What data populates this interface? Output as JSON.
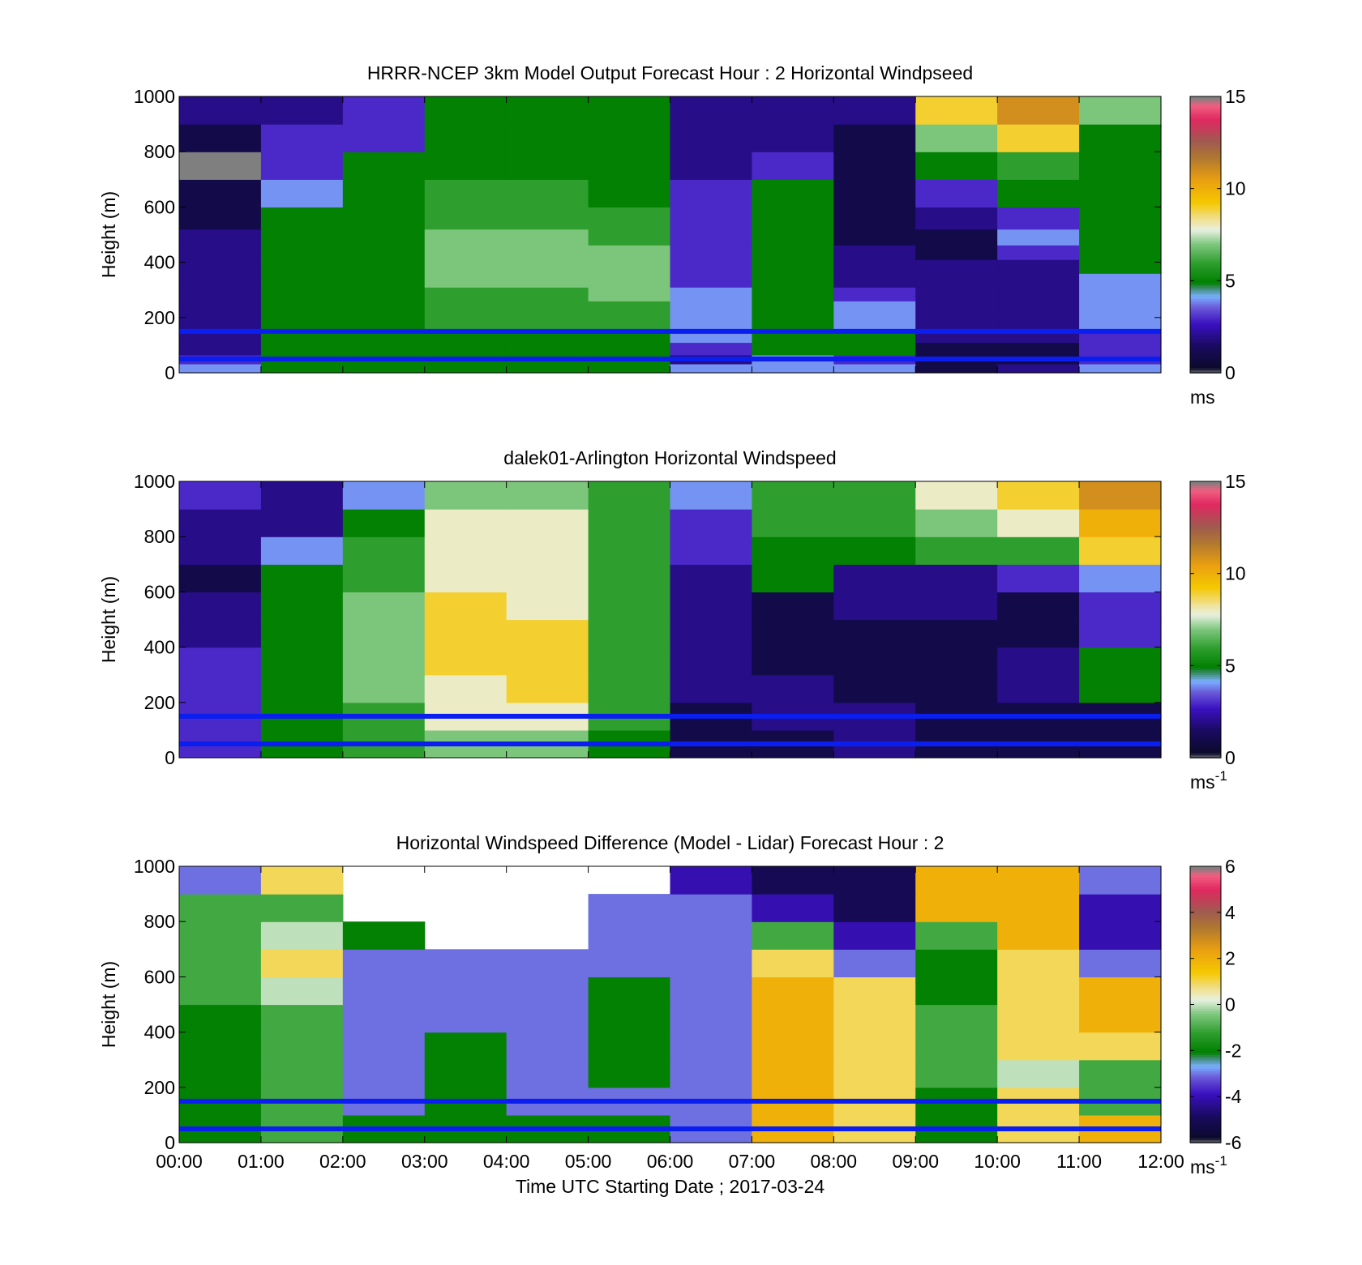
{
  "figure": {
    "xlabel": "Time UTC  Starting Date ; 2017-03-24",
    "x_tick_labels": [
      "00:00",
      "01:00",
      "02:00",
      "03:00",
      "04:00",
      "05:00",
      "06:00",
      "07:00",
      "08:00",
      "09:00",
      "10:00",
      "11:00",
      "12:00"
    ]
  },
  "chart_data": [
    {
      "type": "heatmap",
      "title": "HRRR-NCEP 3km Model Output   Forecast Hour : 2 Horizontal Windpseed",
      "ylabel": "Height (m)",
      "xlim": [
        0,
        12
      ],
      "ylim": [
        0,
        1000
      ],
      "y_ticks": [
        0,
        200,
        400,
        600,
        800,
        1000
      ],
      "colorbar": {
        "range": [
          0,
          15
        ],
        "ticks": [
          0,
          5,
          10,
          15
        ],
        "unit": "ms",
        "unit_sup": ""
      },
      "reference_lines_m": [
        50,
        150
      ],
      "x_hours": [
        0.5,
        1.5,
        2.5,
        3.5,
        4.5,
        5.5,
        6.5,
        7.5,
        8.5,
        9.5,
        10.5,
        11.5
      ],
      "y_levels_m": [
        20,
        45,
        85,
        135,
        185,
        235,
        285,
        335,
        385,
        435,
        490,
        550,
        650,
        750,
        850,
        950
      ],
      "values": [
        [
          4,
          5,
          5,
          5,
          5,
          5,
          4,
          4,
          4,
          1,
          2,
          4
        ],
        [
          3,
          5,
          5,
          5,
          5,
          5,
          2,
          4,
          3,
          1,
          1,
          3
        ],
        [
          2,
          5,
          5,
          5,
          5,
          5,
          3,
          5,
          5,
          1,
          1,
          3
        ],
        [
          2,
          5,
          5,
          5,
          5,
          5,
          4,
          5,
          5,
          2,
          2,
          3
        ],
        [
          2,
          5,
          5,
          6,
          6,
          6,
          4,
          5,
          4,
          2,
          2,
          4
        ],
        [
          2,
          5,
          5,
          6,
          6,
          6,
          4,
          5,
          4,
          2,
          2,
          4
        ],
        [
          2,
          5,
          5,
          6,
          6,
          7,
          4,
          5,
          3,
          2,
          2,
          4
        ],
        [
          2,
          5,
          5,
          7,
          7,
          7,
          3,
          5,
          2,
          2,
          2,
          4
        ],
        [
          2,
          5,
          5,
          7,
          7,
          7,
          3,
          5,
          2,
          2,
          2,
          5
        ],
        [
          2,
          5,
          5,
          7,
          7,
          7,
          3,
          5,
          2,
          1,
          3,
          5
        ],
        [
          2,
          5,
          5,
          7,
          7,
          6,
          3,
          5,
          1,
          1,
          4,
          5
        ],
        [
          1,
          5,
          5,
          6,
          6,
          6,
          3,
          5,
          1,
          2,
          3,
          5
        ],
        [
          1,
          4,
          5,
          6,
          6,
          5,
          3,
          5,
          1,
          3,
          5,
          5
        ],
        [
          0,
          3,
          5,
          5,
          5,
          5,
          2,
          3,
          1,
          5,
          6,
          5
        ],
        [
          1,
          3,
          3,
          5,
          5,
          5,
          2,
          2,
          1,
          7,
          9,
          5
        ],
        [
          2,
          2,
          3,
          5,
          5,
          5,
          2,
          2,
          2,
          9,
          11,
          7
        ]
      ]
    },
    {
      "type": "heatmap",
      "title": "dalek01-Arlington  Horizontal Windspeed",
      "ylabel": "Height (m)",
      "xlim": [
        0,
        12
      ],
      "ylim": [
        0,
        1000
      ],
      "y_ticks": [
        0,
        200,
        400,
        600,
        800,
        1000
      ],
      "colorbar": {
        "range": [
          0,
          15
        ],
        "ticks": [
          0,
          5,
          10,
          15
        ],
        "unit": "ms",
        "unit_sup": "-1"
      },
      "reference_lines_m": [
        50,
        150
      ],
      "x_hours": [
        0.5,
        1.5,
        2.5,
        3.5,
        4.5,
        5.5,
        6.5,
        7.5,
        8.5,
        9.5,
        10.5,
        11.5
      ],
      "y_levels_m": [
        50,
        150,
        250,
        350,
        450,
        550,
        650,
        750,
        850,
        950
      ],
      "values": [
        [
          3,
          5,
          6,
          7,
          7,
          5,
          1,
          1,
          2,
          1,
          1,
          1
        ],
        [
          3,
          5,
          6,
          8,
          8,
          6,
          1,
          2,
          2,
          1,
          1,
          1
        ],
        [
          3,
          5,
          7,
          8,
          9,
          6,
          2,
          2,
          1,
          1,
          2,
          5
        ],
        [
          3,
          5,
          7,
          9,
          9,
          6,
          2,
          1,
          1,
          1,
          2,
          5
        ],
        [
          2,
          5,
          7,
          9,
          9,
          6,
          2,
          1,
          1,
          1,
          1,
          3
        ],
        [
          2,
          5,
          7,
          9,
          8,
          6,
          2,
          1,
          2,
          2,
          1,
          3
        ],
        [
          1,
          5,
          6,
          8,
          8,
          6,
          2,
          5,
          2,
          2,
          3,
          4
        ],
        [
          2,
          4,
          6,
          8,
          8,
          6,
          3,
          5,
          5,
          6,
          6,
          9
        ],
        [
          2,
          2,
          5,
          8,
          8,
          6,
          3,
          6,
          6,
          7,
          8,
          10
        ],
        [
          3,
          2,
          4,
          7,
          7,
          6,
          4,
          6,
          6,
          8,
          9,
          11
        ]
      ]
    },
    {
      "type": "heatmap",
      "title": "Horizontal Windspeed Difference (Model - Lidar) Forecast Hour : 2",
      "ylabel": "Height (m)",
      "xlim": [
        0,
        12
      ],
      "ylim": [
        0,
        1000
      ],
      "y_ticks": [
        0,
        200,
        400,
        600,
        800,
        1000
      ],
      "colorbar": {
        "range": [
          -6,
          6
        ],
        "ticks": [
          -6,
          -4,
          -2,
          0,
          2,
          4,
          6
        ],
        "unit": "ms",
        "unit_sup": "-1"
      },
      "reference_lines_m": [
        50,
        150
      ],
      "x_hours": [
        0.5,
        1.5,
        2.5,
        3.5,
        4.5,
        5.5,
        6.5,
        7.5,
        8.5,
        9.5,
        10.5,
        11.5
      ],
      "y_levels_m": [
        50,
        150,
        250,
        350,
        450,
        550,
        650,
        750,
        850,
        950
      ],
      "values": [
        [
          -2,
          -1,
          -2,
          -2,
          -2,
          -2,
          -3,
          2,
          1,
          -2,
          1,
          2
        ],
        [
          -2,
          -1,
          -3,
          -2,
          -3,
          -3,
          -3,
          2,
          1,
          -2,
          1,
          -1
        ],
        [
          -2,
          -1,
          -3,
          -2,
          -3,
          -2,
          -3,
          2,
          1,
          -1,
          0,
          -1
        ],
        [
          -2,
          -1,
          -3,
          -2,
          -3,
          -2,
          -3,
          2,
          1,
          -1,
          1,
          1
        ],
        [
          -2,
          -1,
          -3,
          -3,
          -3,
          -2,
          -3,
          2,
          1,
          -1,
          1,
          2
        ],
        [
          -1,
          0,
          -3,
          -3,
          -3,
          -2,
          -3,
          2,
          1,
          -2,
          1,
          2
        ],
        [
          -1,
          1,
          -3,
          -3,
          -3,
          -3,
          -3,
          1,
          -3,
          -2,
          1,
          -3
        ],
        [
          -1,
          0,
          -2,
          null,
          null,
          -3,
          -3,
          -1,
          -4,
          -1,
          2,
          -4
        ],
        [
          -1,
          -1,
          null,
          null,
          null,
          -3,
          -3,
          -4,
          -5,
          2,
          2,
          -4
        ],
        [
          -3,
          1,
          null,
          null,
          null,
          null,
          -4,
          -5,
          -5,
          2,
          2,
          -3
        ]
      ]
    }
  ]
}
